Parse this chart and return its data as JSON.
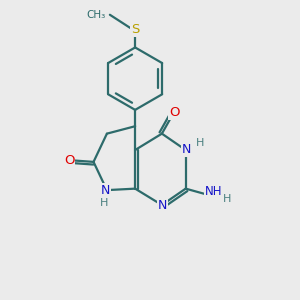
{
  "background_color": "#ebebeb",
  "bond_color": "#2d6b6b",
  "atom_colors": {
    "N": "#1414c8",
    "O": "#e00000",
    "S": "#b8a000",
    "C": "#2d6b6b",
    "H": "#4a8080"
  },
  "figsize": [
    3.0,
    3.0
  ],
  "dpi": 100,
  "lw": 1.6
}
